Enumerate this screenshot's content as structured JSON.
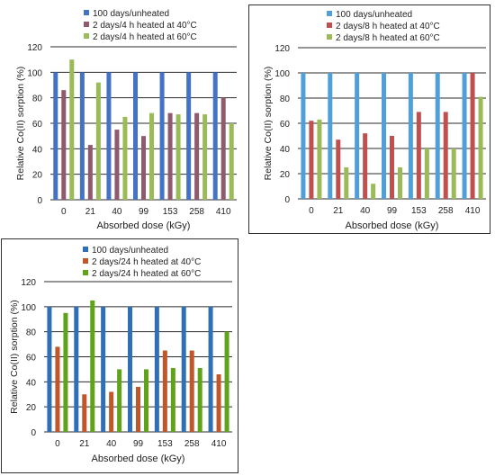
{
  "chart_data": [
    {
      "type": "bar",
      "xlabel": "Absorbed dose (kGy)",
      "ylabel": "Relative Co(II) sorption (%)",
      "categories": [
        "0",
        "21",
        "40",
        "99",
        "153",
        "258",
        "410"
      ],
      "ylim": [
        0,
        120
      ],
      "yticks": [
        "0",
        "20",
        "40",
        "60",
        "80",
        "100",
        "120"
      ],
      "grid": true,
      "legend_position": "top",
      "series": [
        {
          "name": "100 days/unheated",
          "color": "#4472c4",
          "values": [
            100,
            100,
            100,
            100,
            100,
            100,
            100
          ]
        },
        {
          "name": "2 days/4 h heated at 40°C",
          "color": "#8f5a6e",
          "values": [
            86,
            43,
            55,
            50,
            68,
            68,
            80
          ]
        },
        {
          "name": "2 days/4 h heated at 60°C",
          "color": "#9bbb59",
          "values": [
            110,
            92,
            65,
            68,
            67,
            67,
            60
          ]
        }
      ]
    },
    {
      "type": "bar",
      "xlabel": "Absorbed dose (kGy)",
      "ylabel": "Relative Co(II) sorption (%)",
      "categories": [
        "0",
        "21",
        "40",
        "99",
        "153",
        "258",
        "410"
      ],
      "ylim": [
        0,
        120
      ],
      "yticks": [
        "0",
        "20",
        "40",
        "60",
        "80",
        "100",
        "120"
      ],
      "grid": true,
      "legend_position": "top",
      "series": [
        {
          "name": "100 days/unheated",
          "color": "#4f9fd8",
          "values": [
            100,
            100,
            100,
            100,
            100,
            100,
            100
          ]
        },
        {
          "name": "2 days/8 h heated at 40°C",
          "color": "#c0504d",
          "values": [
            62,
            47,
            52,
            50,
            69,
            69,
            100
          ]
        },
        {
          "name": "2 days/8 h heated at 60°C",
          "color": "#9bbb59",
          "values": [
            63,
            25,
            12,
            25,
            40,
            40,
            81
          ]
        }
      ]
    },
    {
      "type": "bar",
      "xlabel": "Absorbed dose (kGy)",
      "ylabel": "Relative Co(II) sorption (%)",
      "categories": [
        "0",
        "21",
        "40",
        "99",
        "153",
        "258",
        "410"
      ],
      "ylim": [
        0,
        120
      ],
      "yticks": [
        "0",
        "20",
        "40",
        "60",
        "80",
        "100",
        "120"
      ],
      "grid": true,
      "legend_position": "top",
      "series": [
        {
          "name": "100 days/unheated",
          "color": "#2e6fb5",
          "values": [
            100,
            100,
            100,
            100,
            100,
            100,
            100
          ]
        },
        {
          "name": "2 days/24 h heated at 40°C",
          "color": "#c0562a",
          "values": [
            68,
            30,
            32,
            36,
            65,
            65,
            46
          ]
        },
        {
          "name": "2 days/24 h heated at 60°C",
          "color": "#5ea318",
          "values": [
            95,
            105,
            50,
            50,
            51,
            51,
            80
          ]
        }
      ]
    }
  ]
}
